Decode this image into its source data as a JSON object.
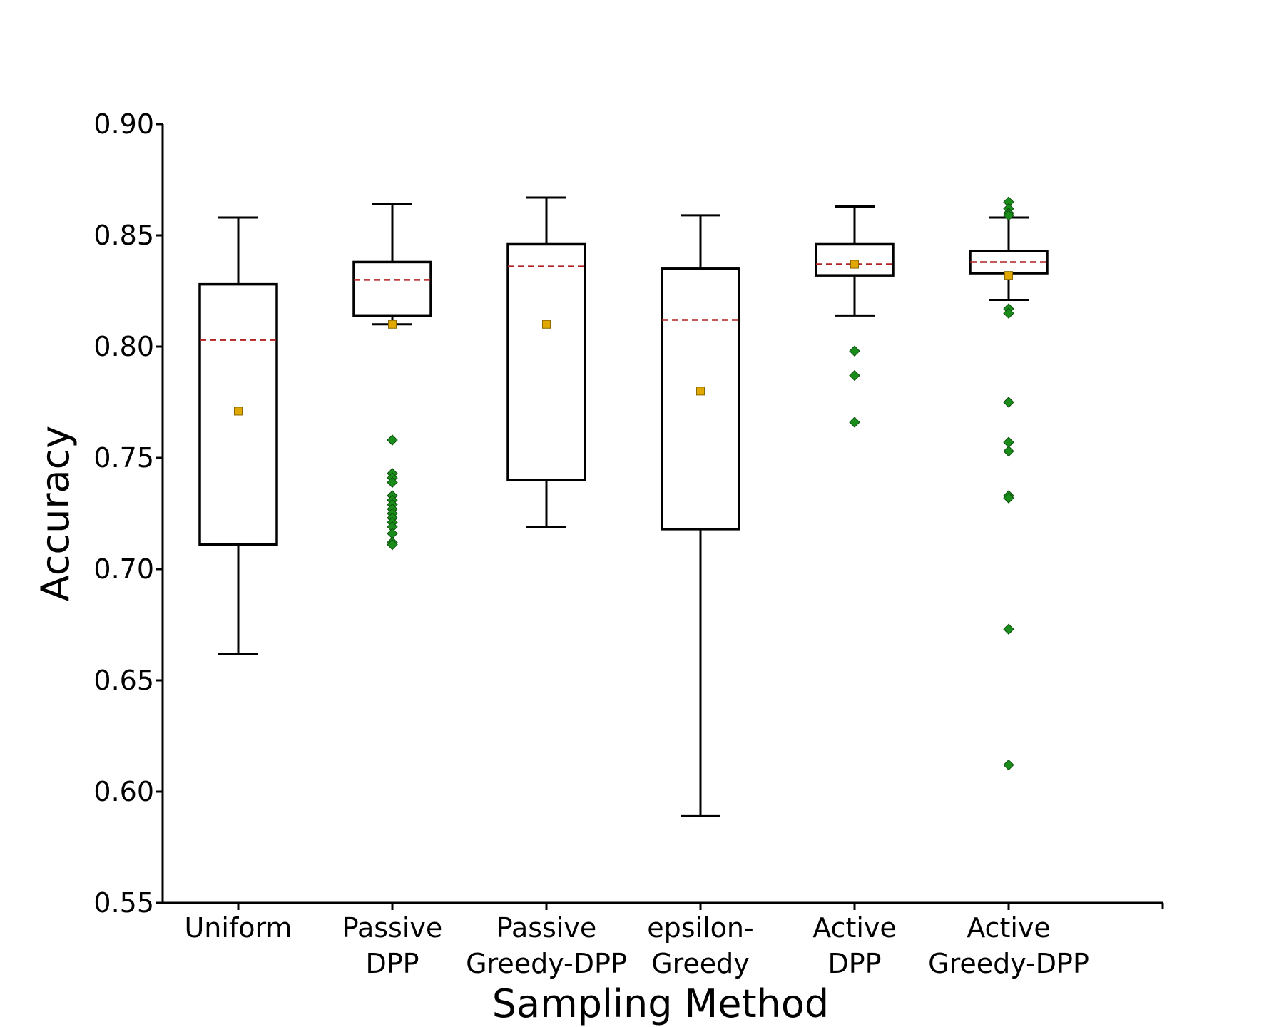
{
  "chart_data": {
    "type": "box",
    "title": "",
    "xlabel": "Sampling Method",
    "ylabel": "Accuracy",
    "ylim": [
      0.55,
      0.9
    ],
    "yticks": [
      "0.55",
      "0.60",
      "0.65",
      "0.70",
      "0.75",
      "0.80",
      "0.85",
      "0.90"
    ],
    "ytick_values": [
      0.55,
      0.6,
      0.65,
      0.7,
      0.75,
      0.8,
      0.85,
      0.9
    ],
    "grid": false,
    "legend": "none",
    "categories": [
      {
        "label_lines": [
          "Uniform"
        ],
        "whisker_low": 0.662,
        "q1": 0.711,
        "median": 0.803,
        "q3": 0.828,
        "whisker_high": 0.858,
        "mean": 0.771,
        "outliers": []
      },
      {
        "label_lines": [
          "Passive",
          "DPP"
        ],
        "whisker_low": 0.81,
        "q1": 0.814,
        "median": 0.83,
        "q3": 0.838,
        "whisker_high": 0.864,
        "mean": 0.81,
        "outliers": [
          0.758,
          0.743,
          0.741,
          0.739,
          0.733,
          0.731,
          0.729,
          0.727,
          0.725,
          0.723,
          0.721,
          0.719,
          0.716,
          0.712,
          0.711
        ]
      },
      {
        "label_lines": [
          "Passive",
          "Greedy-DPP"
        ],
        "whisker_low": 0.719,
        "q1": 0.74,
        "median": 0.836,
        "q3": 0.846,
        "whisker_high": 0.867,
        "mean": 0.81,
        "outliers": []
      },
      {
        "label_lines": [
          "epsilon-",
          "Greedy"
        ],
        "whisker_low": 0.589,
        "q1": 0.718,
        "median": 0.812,
        "q3": 0.835,
        "whisker_high": 0.859,
        "mean": 0.78,
        "outliers": []
      },
      {
        "label_lines": [
          "Active",
          "DPP"
        ],
        "whisker_low": 0.814,
        "q1": 0.832,
        "median": 0.837,
        "q3": 0.846,
        "whisker_high": 0.863,
        "mean": 0.837,
        "outliers": [
          0.798,
          0.787,
          0.766
        ]
      },
      {
        "label_lines": [
          "Active",
          "Greedy-DPP"
        ],
        "whisker_low": 0.821,
        "q1": 0.833,
        "median": 0.838,
        "q3": 0.843,
        "whisker_high": 0.858,
        "mean": 0.832,
        "outliers": [
          0.865,
          0.862,
          0.86,
          0.859,
          0.817,
          0.815,
          0.775,
          0.757,
          0.753,
          0.733,
          0.732,
          0.673,
          0.612
        ]
      }
    ],
    "colors": {
      "box": "#000000",
      "median": "#b22222",
      "mean": "#e0a800",
      "outlier": "#1a8c1a"
    }
  }
}
